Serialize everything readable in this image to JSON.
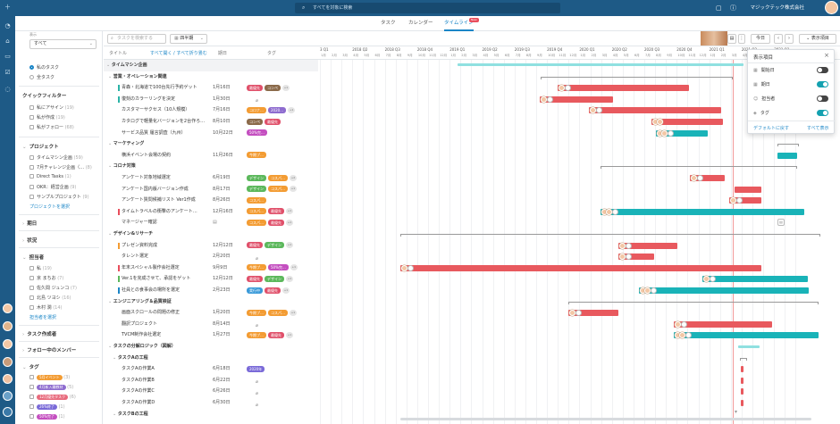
{
  "topbar": {
    "search_placeholder": "すべてを対象に検索",
    "company": "マジックテック株式会社"
  },
  "view_tabs": [
    {
      "label": "タスク",
      "active": false
    },
    {
      "label": "カレンダー",
      "active": false
    },
    {
      "label": "タイムライン",
      "active": true
    }
  ],
  "new_badge": "New",
  "sidebar": {
    "filter_label": "表示",
    "filter_value": "すべて",
    "scope_options": [
      "私のタスク",
      "全タスク"
    ],
    "quick_filter_title": "クイックフィルター",
    "quick_filters": [
      {
        "label": "私にアサイン",
        "count": "(19)"
      },
      {
        "label": "私が作成",
        "count": "(19)"
      },
      {
        "label": "私がフォロー",
        "count": "(68)"
      }
    ],
    "project_title": "プロジェクト",
    "projects": [
      {
        "label": "タイムマシン企画",
        "count": "(59)"
      },
      {
        "label": "7月チャレンジ企画（…",
        "count": "(8)"
      },
      {
        "label": "Direct Tasks",
        "count": "(1)"
      },
      {
        "label": "OKR：経営企画",
        "count": "(9)"
      },
      {
        "label": "サンプルプロジェクト",
        "count": "(9)"
      }
    ],
    "project_link": "プロジェクトを選択",
    "deadline_title": "期日",
    "status_title": "状況",
    "assignee_title": "担当者",
    "assignees": [
      {
        "label": "私",
        "count": "(19)"
      },
      {
        "label": "京 まちお",
        "count": "(7)"
      },
      {
        "label": "佐久間 ジュンコ",
        "count": "(7)"
      },
      {
        "label": "北島 ツヨシ",
        "count": "(16)"
      },
      {
        "label": "木村 潤",
        "count": "(14)"
      }
    ],
    "assignee_link": "担当者を選択",
    "creator_title": "タスク作成者",
    "follow_title": "フォロー中のメンバー",
    "tag_title": "タグ",
    "tags": [
      {
        "label": "5月イベント",
        "color": "#f39c33",
        "count": "(3)"
      },
      {
        "label": "4月新入職教材",
        "color": "#8e6ccf",
        "count": "(5)"
      },
      {
        "label": "12月優先タスク",
        "color": "#e86a7c",
        "count": "(6)"
      },
      {
        "label": "26%終了",
        "color": "#7a6ad8",
        "count": "(1)"
      },
      {
        "label": "50%完了",
        "color": "#c44fc0",
        "count": "(1)"
      }
    ]
  },
  "toolbar": {
    "search_placeholder": "タスクを検索する",
    "period": "四半期",
    "today": "今日",
    "display_items": "表示項目"
  },
  "list_header": {
    "title": "タイトル",
    "expand": "すべて開く / すべて折り畳む",
    "deadline": "期日",
    "tags": "タグ"
  },
  "rows": [
    {
      "type": "group",
      "title": "タイムマシン企画"
    },
    {
      "type": "section",
      "title": "営業・オペレーション関連"
    },
    {
      "type": "task",
      "title": "青森・北海道で100台先行予約ゲット",
      "deadline": "1月16日",
      "accent": "#2bb3a7",
      "tags": [
        {
          "label": "最優先",
          "color": "#e0506a"
        },
        {
          "label": "コンペ",
          "color": "#8b6a4a"
        }
      ],
      "more": "+1"
    },
    {
      "type": "task",
      "title": "復刻のカラーリングを決定",
      "deadline": "1月30日",
      "accent": "#2bb3a7",
      "tags": [],
      "clip": true
    },
    {
      "type": "task",
      "title": "カスタマーサクセス（10人規模）",
      "deadline": "7月16日",
      "accent": "",
      "tags": [
        {
          "label": "コロナ…",
          "color": "#f39c33"
        },
        {
          "label": "2020…",
          "color": "#8e6ccf"
        }
      ],
      "more": "+1"
    },
    {
      "type": "task",
      "title": "カタログで軽量化バージョンを2台作ろ…",
      "deadline": "8月10日",
      "accent": "",
      "tags": [
        {
          "label": "コンペ",
          "color": "#8b6a4a"
        },
        {
          "label": "最優先",
          "color": "#e0506a"
        }
      ]
    },
    {
      "type": "task",
      "title": "サービス品質 履言調査（九州）",
      "deadline": "10月22日",
      "accent": "",
      "tags": [
        {
          "label": "50%完…",
          "color": "#c44fc0"
        }
      ]
    },
    {
      "type": "section",
      "title": "マーケティング"
    },
    {
      "type": "task",
      "title": "横浜イベント会場の契約",
      "deadline": "11月26日",
      "accent": "",
      "tags": [
        {
          "label": "今期プ…",
          "color": "#f39c33"
        }
      ]
    },
    {
      "type": "section",
      "title": "コロナ対策"
    },
    {
      "type": "task",
      "title": "アンケート対象地域選定",
      "deadline": "6月19日",
      "accent": "",
      "tags": [
        {
          "label": "デザイン",
          "color": "#5cb85c"
        },
        {
          "label": "コスパ…",
          "color": "#f39c33"
        }
      ],
      "more": "+2"
    },
    {
      "type": "task",
      "title": "アンケート国内版バージョン作成",
      "deadline": "8月17日",
      "accent": "",
      "tags": [
        {
          "label": "デザイン",
          "color": "#5cb85c"
        },
        {
          "label": "コスパ…",
          "color": "#f39c33"
        }
      ],
      "more": "+1"
    },
    {
      "type": "task",
      "title": "アンケート質問候補リスト Ver1作成",
      "deadline": "8月26日",
      "accent": "",
      "tags": [
        {
          "label": "コスパ…",
          "color": "#f39c33"
        }
      ]
    },
    {
      "type": "task",
      "title": "タイムトラベルの衝撃のアンケート…",
      "deadline": "12月16日",
      "accent": "#e94d5c",
      "tags": [
        {
          "label": "コスパ…",
          "color": "#f39c33"
        },
        {
          "label": "最優先",
          "color": "#e0506a"
        }
      ],
      "more": "+1"
    },
    {
      "type": "task",
      "title": "マネージャー確認",
      "deadline": "",
      "accent": "",
      "tags": [
        {
          "label": "コスパ…",
          "color": "#f39c33"
        },
        {
          "label": "最優先",
          "color": "#e0506a"
        }
      ],
      "more": "+1",
      "box": true
    },
    {
      "type": "section",
      "title": "デザイン&リサーチ"
    },
    {
      "type": "task",
      "title": "プレゼン資料完成",
      "deadline": "12月12日",
      "accent": "#f39c33",
      "tags": [
        {
          "label": "最優先",
          "color": "#e0506a"
        },
        {
          "label": "デザイン",
          "color": "#5cb85c"
        }
      ],
      "more": "+1"
    },
    {
      "type": "task",
      "title": "タレント選定",
      "deadline": "2月20日",
      "accent": "",
      "tags": [],
      "clip": true
    },
    {
      "type": "task",
      "title": "年末スペシャル製作会社選定",
      "deadline": "9月9日",
      "accent": "#e94d5c",
      "tags": [
        {
          "label": "今期プ…",
          "color": "#f39c33"
        },
        {
          "label": "50%完…",
          "color": "#c44fc0"
        }
      ],
      "more": "+1"
    },
    {
      "type": "task",
      "title": "Ver.1を完成させて、承認をゲット",
      "deadline": "12月12日",
      "accent": "#5cb85c",
      "tags": [
        {
          "label": "最優先",
          "color": "#e0506a"
        },
        {
          "label": "デザイン",
          "color": "#5cb85c"
        }
      ],
      "more": "+1"
    },
    {
      "type": "task",
      "title": "社員との食事会の場所を選定",
      "deadline": "2月23日",
      "accent": "#1b86c7",
      "tags": [
        {
          "label": "実行中",
          "color": "#3a9ad9"
        },
        {
          "label": "最優先",
          "color": "#e0506a"
        }
      ],
      "more": "+1"
    },
    {
      "type": "section",
      "title": "エンジニアリング＆品質検証"
    },
    {
      "type": "task",
      "title": "画面スクロールの問題の修正",
      "deadline": "1月20日",
      "accent": "",
      "tags": [
        {
          "label": "今期プ…",
          "color": "#f39c33"
        },
        {
          "label": "コスパ…",
          "color": "#f39c33"
        }
      ],
      "more": "+1"
    },
    {
      "type": "task",
      "title": "翻訳プロジェクト",
      "deadline": "8月14日",
      "accent": "",
      "tags": [],
      "clip": true
    },
    {
      "type": "task",
      "title": "TVCM制作会社選定",
      "deadline": "1月27日",
      "accent": "",
      "tags": [
        {
          "label": "今期プ…",
          "color": "#f39c33"
        },
        {
          "label": "最優先",
          "color": "#e0506a"
        }
      ],
      "more": "+1"
    },
    {
      "type": "section",
      "title": "タスクの分解ロジック（図解）"
    },
    {
      "type": "section",
      "title": "タスクAの工程",
      "indent": 1
    },
    {
      "type": "task",
      "title": "タスクAの作業A",
      "deadline": "6月18日",
      "accent": "",
      "tags": [
        {
          "label": "2020年",
          "color": "#7a6ad8"
        }
      ]
    },
    {
      "type": "task",
      "title": "タスクAの作業B",
      "deadline": "6月22日",
      "accent": "",
      "tags": [],
      "clip": true
    },
    {
      "type": "task",
      "title": "タスクAの作業C",
      "deadline": "6月26日",
      "accent": "",
      "tags": [],
      "clip": true
    },
    {
      "type": "task",
      "title": "タスクAの作業D",
      "deadline": "6月30日",
      "accent": "",
      "tags": [],
      "clip": true
    },
    {
      "type": "section",
      "title": "タスクBの工程",
      "indent": 1
    }
  ],
  "gantt": {
    "quarters": [
      "3 Q1",
      "2018 Q2",
      "2018 Q3",
      "2018 Q4",
      "2019 Q1",
      "2019 Q2",
      "2019 Q3",
      "2019 Q4",
      "2020 Q1",
      "2020 Q2",
      "2020 Q3",
      "2020 Q4",
      "2021 Q1",
      "2021 Q2",
      "2021 Q3"
    ],
    "months": [
      "1月",
      "2月",
      "3月",
      "4月",
      "5月",
      "6月",
      "7月",
      "8月",
      "9月",
      "10月",
      "11月",
      "12月",
      "1月",
      "2月",
      "3月",
      "4月",
      "5月",
      "6月",
      "7月",
      "8月",
      "9月",
      "10月",
      "11月",
      "12月",
      "1月",
      "2月",
      "3月",
      "4月",
      "5月",
      "6月",
      "7月",
      "8月",
      "9月",
      "10月",
      "11月",
      "12月",
      "1月",
      "2月",
      "3月",
      "4月",
      "5月",
      "6月",
      "7月",
      "8月",
      "9月"
    ],
    "colors": {
      "red": "#e8595e",
      "teal": "#19b3b8",
      "light_teal": "#8fe0e0"
    }
  },
  "display_popup": {
    "title": "表示項目",
    "items": [
      {
        "label": "開始日",
        "on": false
      },
      {
        "label": "期日",
        "on": true
      },
      {
        "label": "担当者",
        "on": false
      },
      {
        "label": "タグ",
        "on": true
      }
    ],
    "reset": "デフォルトに戻す",
    "show_all": "すべて表示"
  }
}
